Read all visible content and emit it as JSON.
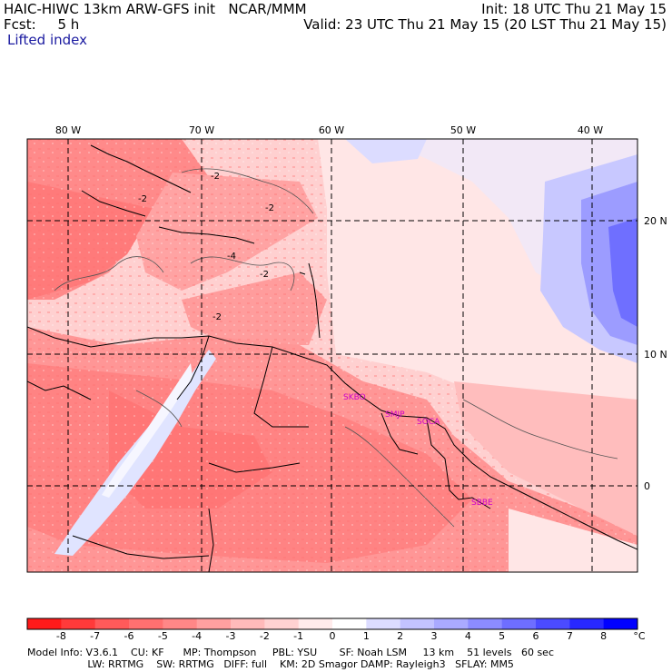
{
  "header": {
    "title": "HAIC-HIWC 13km ARW-GFS init   NCAR/MMM",
    "fcst": "Fcst:     5 h",
    "init": "Init: 18 UTC Thu 21 May 15",
    "valid": "Valid: 23 UTC Thu 21 May 15 (20 LST Thu 21 May 15)",
    "field": "Lifted index"
  },
  "map": {
    "lon_labels": [
      "80 W",
      "70 W",
      "60 W",
      "50 W",
      "40 W"
    ],
    "lat_labels": [
      "20 N",
      "10 N",
      "0"
    ],
    "station_labels": [
      "SKBO",
      "SMJP",
      "SOCA",
      "SBBE"
    ],
    "contour_labels": [
      "-2",
      "-2",
      "-2",
      "-2",
      "-4",
      "-2"
    ],
    "colors": {
      "station": "#cc00cc",
      "frame": "#000000",
      "neg_strong": "#ff0000",
      "pos_strong": "#0000ff"
    }
  },
  "colorbar": {
    "levels": [
      "-8",
      "-7",
      "-6",
      "-5",
      "-4",
      "-3",
      "-2",
      "-1",
      "0",
      "1",
      "2",
      "3",
      "4",
      "5",
      "6",
      "7",
      "8"
    ],
    "unit": "°C",
    "colors": [
      "#ff1a1a",
      "#ff3a3a",
      "#ff5a5a",
      "#ff7070",
      "#ff8787",
      "#ffa0a0",
      "#ffbaba",
      "#ffd2d2",
      "#ffebeb",
      "#ffffff",
      "#dcdcff",
      "#c3c3ff",
      "#aaaaff",
      "#8c8cff",
      "#6e6eff",
      "#4b4bff",
      "#2828ff",
      "#0000ff"
    ]
  },
  "footer": {
    "line1": "Model Info: V3.6.1    CU: KF      MP: Thompson     PBL: YSU       SF: Noah LSM     13 km    51 levels   60 sec",
    "line2": "                   LW: RRTMG    SW: RRTMG   DIFF: full    KM: 2D Smagor DAMP: Rayleigh3   SFLAY: MM5"
  }
}
